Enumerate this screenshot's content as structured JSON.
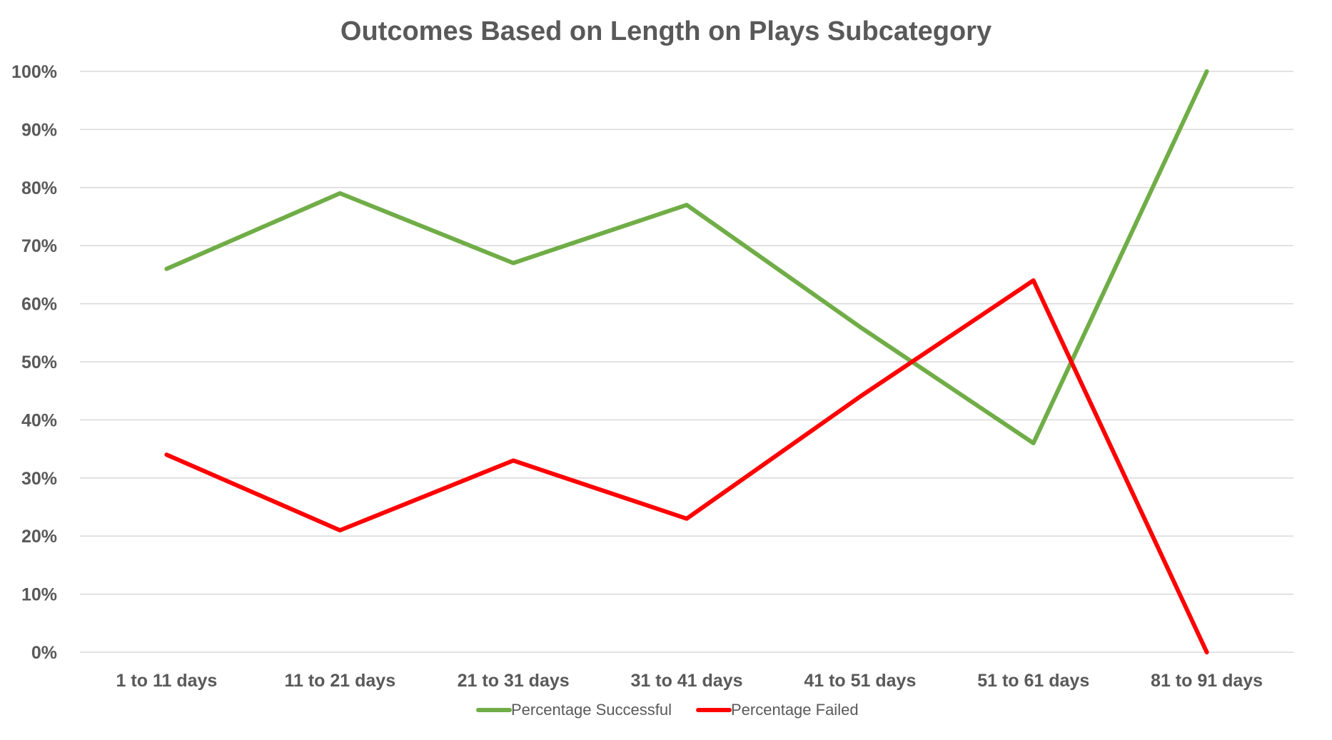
{
  "chart_data": {
    "type": "line",
    "title": "Outcomes Based on Length on Plays Subcategory",
    "xlabel": "",
    "ylabel": "",
    "categories": [
      "1 to 11 days",
      "11 to 21 days",
      "21 to 31 days",
      "31 to 41 days",
      "41 to 51 days",
      "51 to 61 days",
      "81 to 91 days"
    ],
    "series": [
      {
        "name": "Percentage Successful",
        "color": "#70ad47",
        "values": [
          0.66,
          0.79,
          0.67,
          0.77,
          0.56,
          0.36,
          1.0
        ]
      },
      {
        "name": "Percentage Failed",
        "color": "#ff0000",
        "values": [
          0.34,
          0.21,
          0.33,
          0.23,
          0.44,
          0.64,
          0.0
        ]
      }
    ],
    "ylim": [
      0,
      1
    ],
    "y_ticks": [
      "0%",
      "10%",
      "20%",
      "30%",
      "40%",
      "50%",
      "60%",
      "70%",
      "80%",
      "90%",
      "100%"
    ],
    "y_tick_values": [
      0,
      0.1,
      0.2,
      0.3,
      0.4,
      0.5,
      0.6,
      0.7,
      0.8,
      0.9,
      1.0
    ],
    "grid": true,
    "legend_position": "bottom"
  }
}
